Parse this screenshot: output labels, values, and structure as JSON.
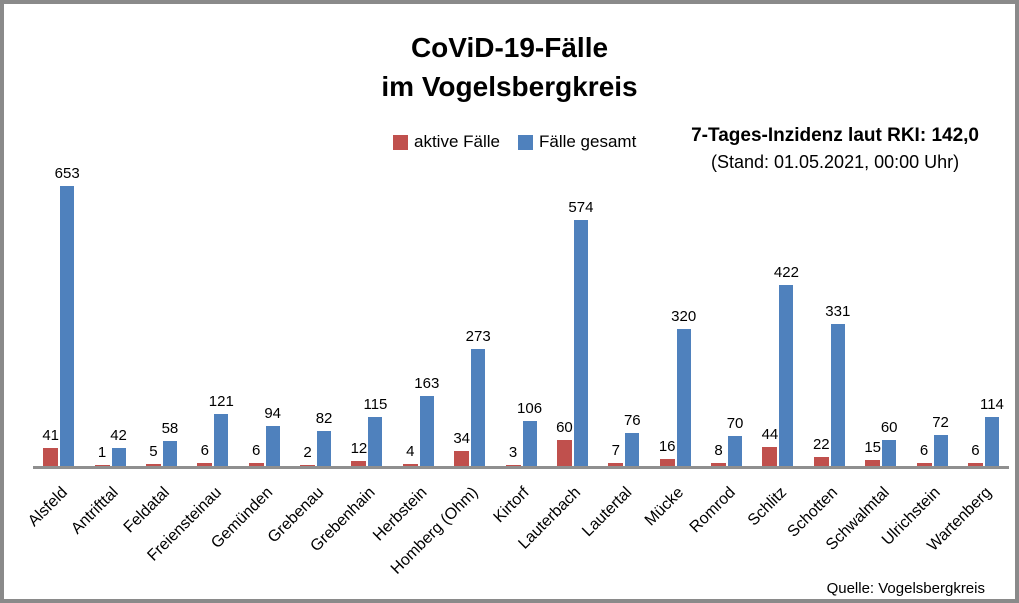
{
  "title": {
    "line1": "CoViD-19-Fälle",
    "line2": "im Vogelsbergkreis"
  },
  "annotation": {
    "line1": "7-Tages-Inzidenz laut RKI: 142,0",
    "line2": "(Stand: 01.05.2021, 00:00 Uhr)"
  },
  "source": "Quelle: Vogelsbergkreis",
  "chart_data": {
    "type": "bar",
    "title": "CoViD-19-Fälle im Vogelsbergkreis",
    "categories": [
      "Alsfeld",
      "Antrifttal",
      "Feldatal",
      "Freiensteinau",
      "Gemünden",
      "Grebenau",
      "Grebenhain",
      "Herbstein",
      "Homberg (Ohm)",
      "Kirtorf",
      "Lauterbach",
      "Lautertal",
      "Mücke",
      "Romrod",
      "Schlitz",
      "Schotten",
      "Schwalmtal",
      "Ulrichstein",
      "Wartenberg"
    ],
    "series": [
      {
        "name": "aktive Fälle",
        "color": "#C0504D",
        "values": [
          41,
          1,
          5,
          6,
          6,
          2,
          12,
          4,
          34,
          3,
          60,
          7,
          16,
          8,
          44,
          22,
          15,
          6,
          6
        ]
      },
      {
        "name": "Fälle gesamt",
        "color": "#4F81BD",
        "values": [
          653,
          42,
          58,
          121,
          94,
          82,
          115,
          163,
          273,
          106,
          574,
          76,
          320,
          70,
          422,
          331,
          60,
          72,
          114
        ]
      }
    ],
    "ylim": [
      0,
      700
    ],
    "grid": false,
    "data_labels": true,
    "legend_position": "top-center",
    "axis_color": "#8f8f8f",
    "xlabel": "",
    "ylabel": ""
  }
}
